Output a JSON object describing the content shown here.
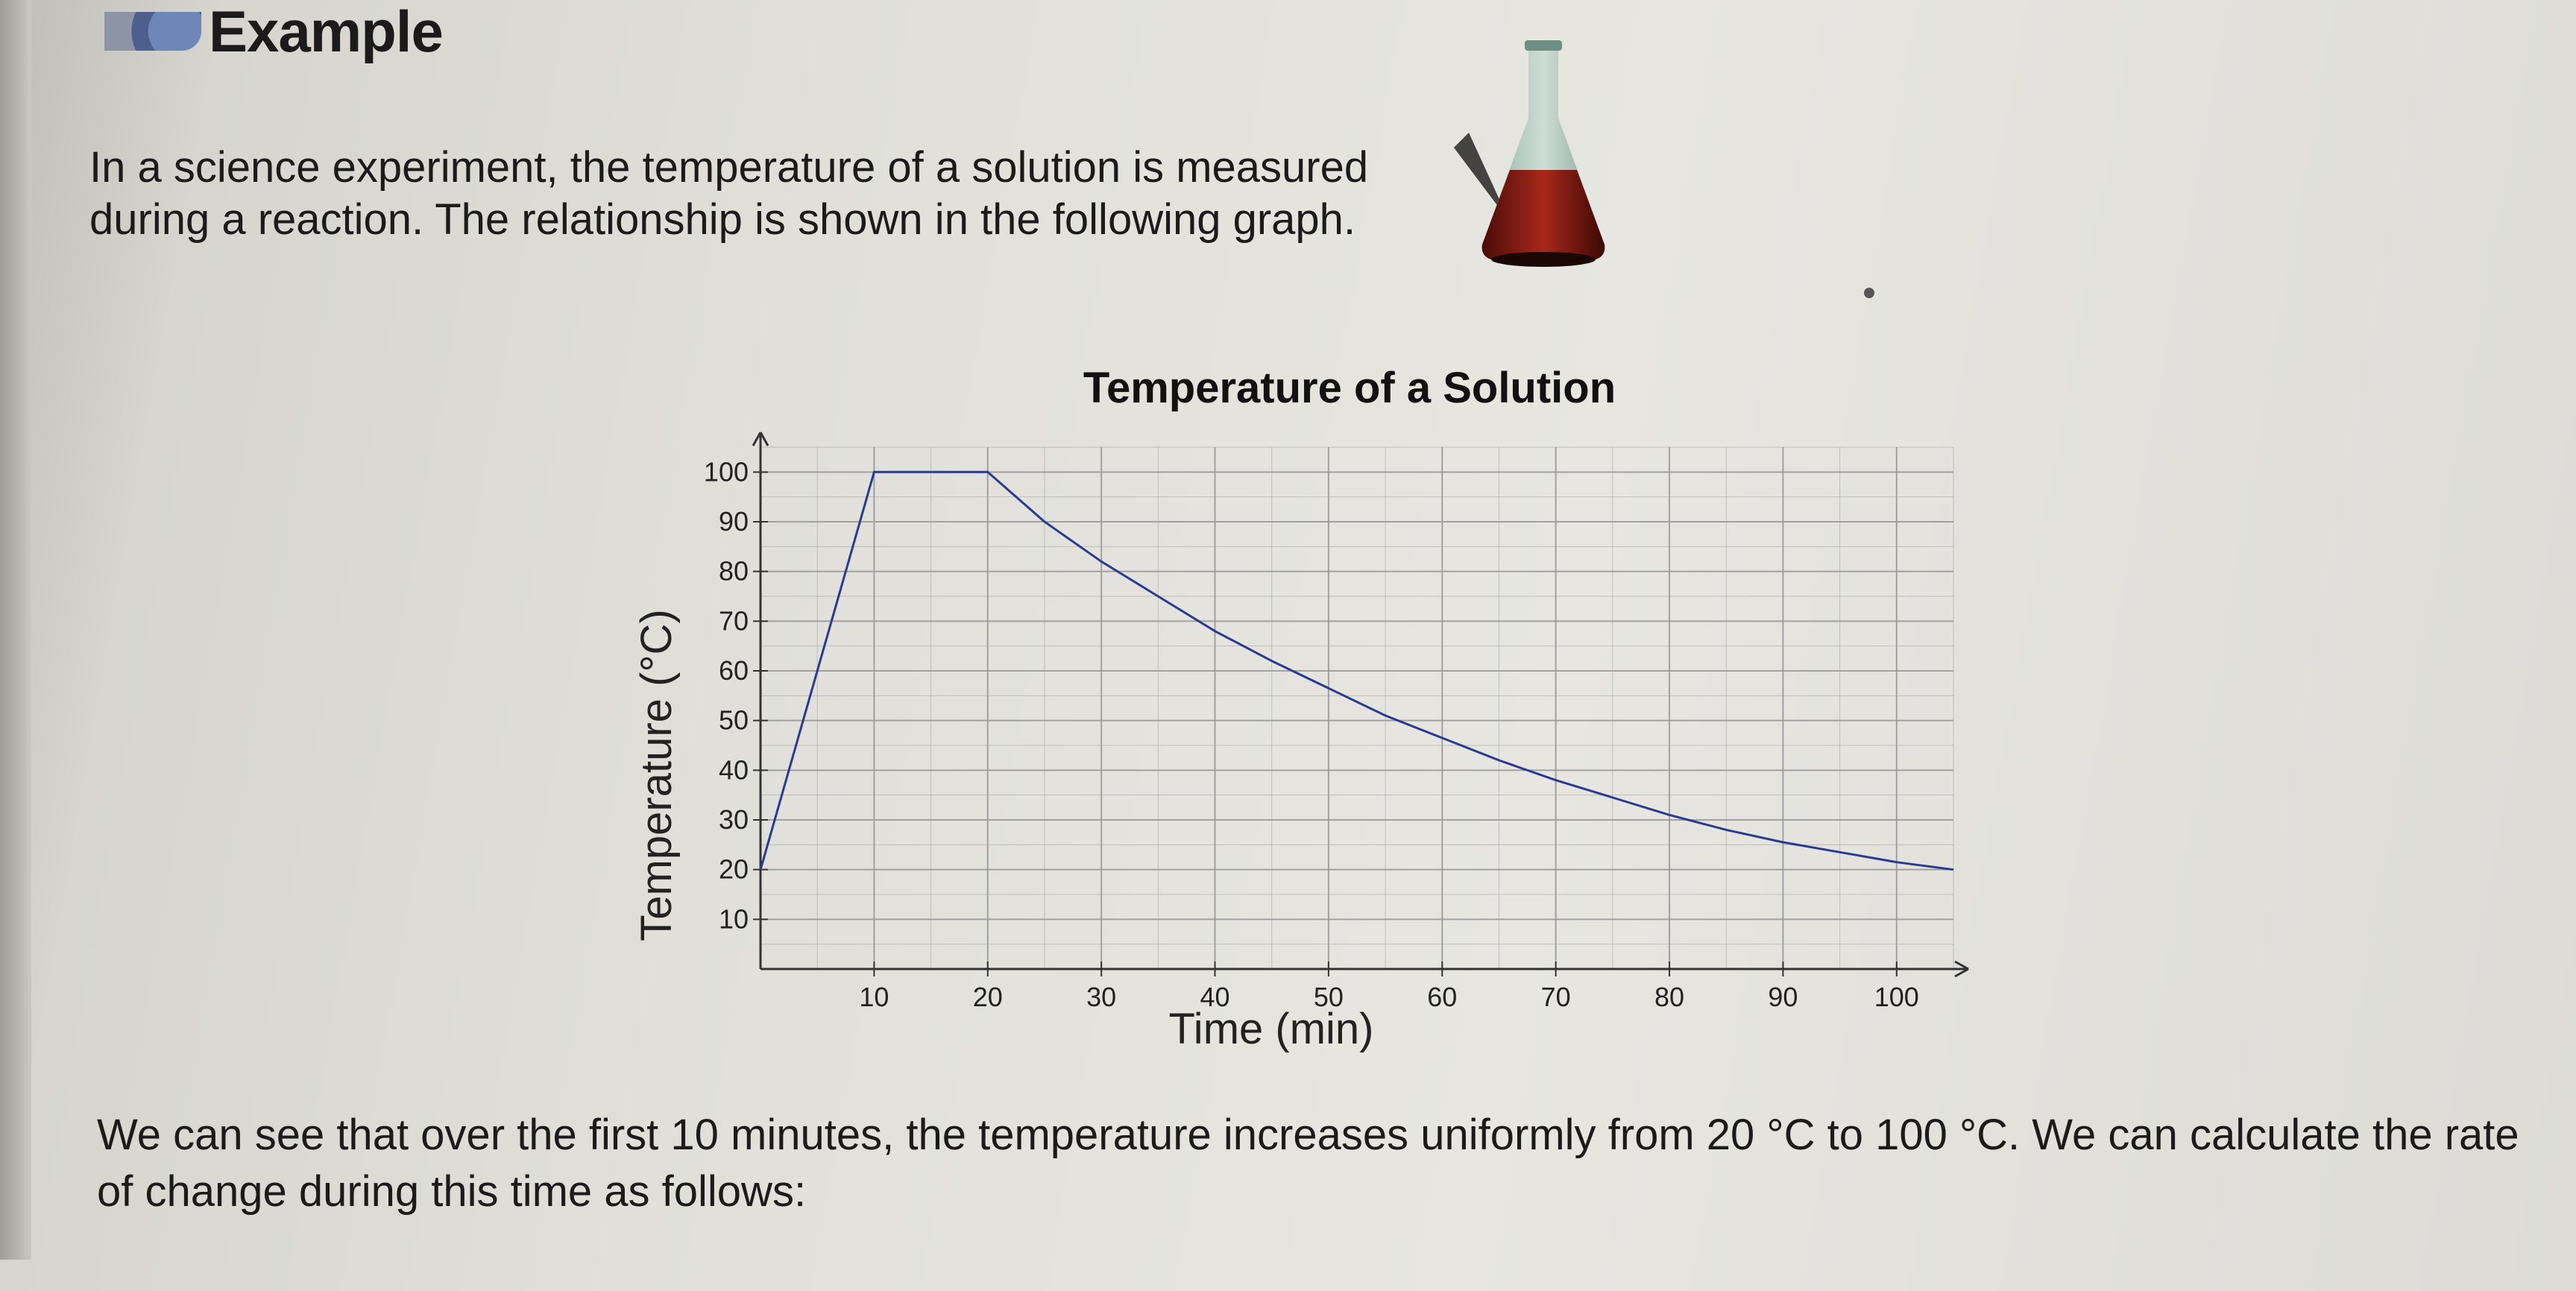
{
  "heading": {
    "title": "Example"
  },
  "intro_text": "In a science experiment, the temperature of a solution is measured during a reaction. The relationship is shown in the following graph.",
  "outro_text": "We can see that over the first 10 minutes, the temperature increases uniformly from 20 °C to 100 °C. We can calculate the rate of change during this time as follows:",
  "colors": {
    "curve": "#2b3a8f",
    "grid": "#9a9a9a",
    "axis": "#333333",
    "flask_liquid": "#8e1e14"
  },
  "chart_data": {
    "type": "line",
    "title": "Temperature of a Solution",
    "xlabel": "Time (min)",
    "ylabel": "Temperature (°C)",
    "xlim": [
      0,
      105
    ],
    "ylim": [
      0,
      105
    ],
    "x_ticks": [
      "10",
      "20",
      "30",
      "40",
      "50",
      "60",
      "70",
      "80",
      "90",
      "100"
    ],
    "y_ticks": [
      "100",
      "90",
      "80",
      "70",
      "60",
      "50",
      "40",
      "30",
      "20",
      "10"
    ],
    "grid": true,
    "series": [
      {
        "x": [
          0,
          10,
          20,
          25,
          30,
          35,
          40,
          45,
          50,
          55,
          60,
          65,
          70,
          75,
          80,
          85,
          90,
          95,
          100,
          105
        ],
        "y": [
          20,
          100,
          100,
          90,
          82,
          75,
          68,
          62,
          56.5,
          51,
          46.5,
          42,
          38,
          34.5,
          31,
          28,
          25.5,
          23.5,
          21.5,
          20
        ]
      }
    ]
  }
}
